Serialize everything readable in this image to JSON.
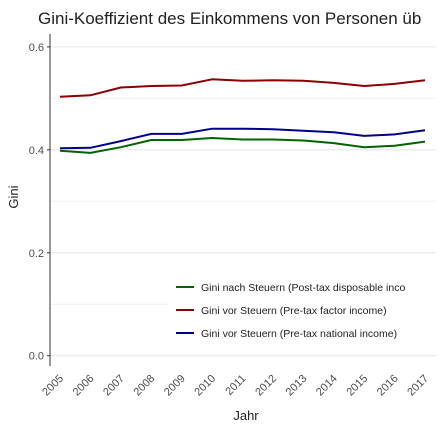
{
  "chart_data": {
    "type": "line",
    "title": "Gini-Koeffizient des Einkommens von Personen üb",
    "xlabel": "Jahr",
    "ylabel": "Gini",
    "x": [
      "2005",
      "2006",
      "2007",
      "2008",
      "2009",
      "2010",
      "2011",
      "2012",
      "2013",
      "2014",
      "2015",
      "2016",
      "2017"
    ],
    "ylim": [
      -0.02,
      0.625
    ],
    "yticks": [
      "0.0",
      "0.2",
      "0.4",
      "0.6"
    ],
    "ytick_values": [
      0.0,
      0.2,
      0.4,
      0.6
    ],
    "grid": true,
    "legend_position": "bottom-right",
    "series": [
      {
        "name": "Gini nach Steuern (Post-tax disposable inco",
        "color": "#006400",
        "values": [
          0.398,
          0.394,
          0.405,
          0.419,
          0.419,
          0.423,
          0.42,
          0.42,
          0.418,
          0.413,
          0.405,
          0.408,
          0.416
        ]
      },
      {
        "name": "Gini vor Steuern (Pre-tax factor income)",
        "color": "#8b0000",
        "values": [
          0.503,
          0.506,
          0.521,
          0.524,
          0.525,
          0.537,
          0.534,
          0.535,
          0.534,
          0.53,
          0.524,
          0.528,
          0.535
        ]
      },
      {
        "name": "Gini vor Steuern (Pre-tax national income)",
        "color": "#00008b",
        "values": [
          0.403,
          0.404,
          0.417,
          0.431,
          0.431,
          0.441,
          0.441,
          0.44,
          0.437,
          0.434,
          0.427,
          0.43,
          0.438
        ]
      }
    ]
  }
}
